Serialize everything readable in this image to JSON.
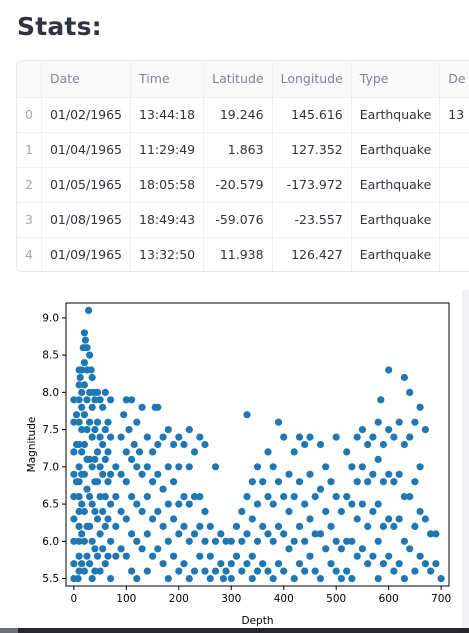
{
  "page": {
    "heading": "Stats:"
  },
  "table": {
    "columns": [
      "",
      "Date",
      "Time",
      "Latitude",
      "Longitude",
      "Type",
      "De"
    ],
    "rows": [
      {
        "index": "0",
        "date": "01/02/1965",
        "time": "13:44:18",
        "latitude": "19.246",
        "longitude": "145.616",
        "type": "Earthquake",
        "de": "13"
      },
      {
        "index": "1",
        "date": "01/04/1965",
        "time": "11:29:49",
        "latitude": "1.863",
        "longitude": "127.352",
        "type": "Earthquake",
        "de": ""
      },
      {
        "index": "2",
        "date": "01/05/1965",
        "time": "18:05:58",
        "latitude": "-20.579",
        "longitude": "-173.972",
        "type": "Earthquake",
        "de": ""
      },
      {
        "index": "3",
        "date": "01/08/1965",
        "time": "18:49:43",
        "latitude": "-59.076",
        "longitude": "-23.557",
        "type": "Earthquake",
        "de": ""
      },
      {
        "index": "4",
        "date": "01/09/1965",
        "time": "13:32:50",
        "latitude": "11.938",
        "longitude": "126.427",
        "type": "Earthquake",
        "de": ""
      }
    ]
  },
  "chart_data": {
    "type": "scatter",
    "xlabel": "Depth",
    "ylabel": "Magnitude",
    "xlim": [
      -15,
      715
    ],
    "ylim": [
      5.4,
      9.2
    ],
    "xticks": [
      "0",
      "100",
      "200",
      "300",
      "400",
      "500",
      "600",
      "700"
    ],
    "yticks": [
      "5.5",
      "6.0",
      "6.5",
      "7.0",
      "7.5",
      "8.0",
      "8.5",
      "9.0"
    ],
    "color": "#1f77b4",
    "grid": false,
    "points": [
      [
        0,
        5.5
      ],
      [
        0,
        5.7
      ],
      [
        0,
        6.0
      ],
      [
        0,
        6.3
      ],
      [
        0,
        6.6
      ],
      [
        0,
        6.9
      ],
      [
        0,
        7.2
      ],
      [
        0,
        7.6
      ],
      [
        0,
        7.9
      ],
      [
        5,
        6.8
      ],
      [
        5,
        7.3
      ],
      [
        5,
        7.7
      ],
      [
        8,
        5.5
      ],
      [
        10,
        5.6
      ],
      [
        10,
        5.8
      ],
      [
        10,
        6.0
      ],
      [
        10,
        6.2
      ],
      [
        10,
        6.4
      ],
      [
        10,
        6.6
      ],
      [
        10,
        6.8
      ],
      [
        10,
        7.0
      ],
      [
        10,
        7.3
      ],
      [
        10,
        7.6
      ],
      [
        10,
        7.9
      ],
      [
        10,
        8.1
      ],
      [
        10,
        8.3
      ],
      [
        12,
        8.2
      ],
      [
        15,
        8.3
      ],
      [
        15,
        8.0
      ],
      [
        15,
        7.8
      ],
      [
        15,
        7.5
      ],
      [
        15,
        7.2
      ],
      [
        15,
        6.9
      ],
      [
        15,
        6.5
      ],
      [
        15,
        6.1
      ],
      [
        15,
        5.7
      ],
      [
        18,
        8.6
      ],
      [
        20,
        8.8
      ],
      [
        20,
        8.4
      ],
      [
        20,
        8.1
      ],
      [
        20,
        7.7
      ],
      [
        20,
        7.3
      ],
      [
        20,
        6.9
      ],
      [
        20,
        6.4
      ],
      [
        20,
        6.0
      ],
      [
        20,
        5.6
      ],
      [
        22,
        8.7
      ],
      [
        25,
        8.6
      ],
      [
        25,
        8.3
      ],
      [
        25,
        7.9
      ],
      [
        25,
        7.5
      ],
      [
        25,
        7.1
      ],
      [
        25,
        6.7
      ],
      [
        25,
        6.2
      ],
      [
        25,
        5.8
      ],
      [
        28,
        9.1
      ],
      [
        30,
        8.5
      ],
      [
        30,
        8.0
      ],
      [
        30,
        7.6
      ],
      [
        30,
        7.1
      ],
      [
        30,
        6.6
      ],
      [
        30,
        6.2
      ],
      [
        30,
        5.7
      ],
      [
        33,
        8.3
      ],
      [
        35,
        8.2
      ],
      [
        35,
        7.8
      ],
      [
        35,
        7.4
      ],
      [
        35,
        7.0
      ],
      [
        35,
        6.5
      ],
      [
        35,
        6.0
      ],
      [
        35,
        5.5
      ],
      [
        38,
        8.0
      ],
      [
        40,
        7.9
      ],
      [
        40,
        7.5
      ],
      [
        40,
        7.1
      ],
      [
        40,
        6.8
      ],
      [
        40,
        6.4
      ],
      [
        40,
        5.9
      ],
      [
        40,
        5.6
      ],
      [
        45,
        8.0
      ],
      [
        45,
        7.6
      ],
      [
        45,
        7.2
      ],
      [
        45,
        6.8
      ],
      [
        45,
        6.3
      ],
      [
        45,
        5.8
      ],
      [
        50,
        7.9
      ],
      [
        50,
        7.4
      ],
      [
        50,
        7.0
      ],
      [
        50,
        6.6
      ],
      [
        50,
        6.1
      ],
      [
        50,
        5.6
      ],
      [
        55,
        7.8
      ],
      [
        55,
        7.3
      ],
      [
        55,
        6.9
      ],
      [
        55,
        6.4
      ],
      [
        55,
        5.9
      ],
      [
        60,
        8.0
      ],
      [
        60,
        7.5
      ],
      [
        60,
        7.1
      ],
      [
        60,
        6.6
      ],
      [
        60,
        6.2
      ],
      [
        60,
        5.7
      ],
      [
        65,
        7.6
      ],
      [
        65,
        7.2
      ],
      [
        65,
        6.8
      ],
      [
        65,
        6.3
      ],
      [
        65,
        5.8
      ],
      [
        70,
        7.9
      ],
      [
        70,
        7.4
      ],
      [
        70,
        6.9
      ],
      [
        70,
        6.5
      ],
      [
        70,
        6.0
      ],
      [
        70,
        5.5
      ],
      [
        80,
        7.0
      ],
      [
        80,
        6.6
      ],
      [
        80,
        6.2
      ],
      [
        80,
        5.8
      ],
      [
        90,
        7.4
      ],
      [
        90,
        6.9
      ],
      [
        90,
        6.4
      ],
      [
        90,
        5.9
      ],
      [
        95,
        7.7
      ],
      [
        100,
        7.9
      ],
      [
        100,
        7.2
      ],
      [
        100,
        6.8
      ],
      [
        100,
        6.3
      ],
      [
        100,
        5.8
      ],
      [
        105,
        7.5
      ],
      [
        110,
        7.9
      ],
      [
        110,
        7.1
      ],
      [
        110,
        6.6
      ],
      [
        110,
        6.1
      ],
      [
        110,
        5.6
      ],
      [
        115,
        7.3
      ],
      [
        120,
        7.6
      ],
      [
        120,
        7.0
      ],
      [
        120,
        6.5
      ],
      [
        120,
        6.0
      ],
      [
        120,
        5.5
      ],
      [
        125,
        7.2
      ],
      [
        130,
        7.8
      ],
      [
        130,
        6.9
      ],
      [
        130,
        6.4
      ],
      [
        130,
        5.9
      ],
      [
        140,
        7.4
      ],
      [
        140,
        7.0
      ],
      [
        140,
        6.6
      ],
      [
        140,
        6.1
      ],
      [
        140,
        5.6
      ],
      [
        150,
        7.2
      ],
      [
        150,
        6.8
      ],
      [
        150,
        6.3
      ],
      [
        150,
        5.8
      ],
      [
        155,
        7.8
      ],
      [
        160,
        7.8
      ],
      [
        160,
        7.3
      ],
      [
        160,
        6.9
      ],
      [
        160,
        6.4
      ],
      [
        160,
        5.9
      ],
      [
        170,
        7.4
      ],
      [
        170,
        6.7
      ],
      [
        170,
        6.2
      ],
      [
        170,
        5.7
      ],
      [
        180,
        7.5
      ],
      [
        180,
        7.0
      ],
      [
        180,
        6.5
      ],
      [
        180,
        6.0
      ],
      [
        180,
        5.5
      ],
      [
        190,
        7.3
      ],
      [
        190,
        6.8
      ],
      [
        190,
        6.3
      ],
      [
        190,
        5.8
      ],
      [
        200,
        7.4
      ],
      [
        200,
        7.0
      ],
      [
        200,
        6.5
      ],
      [
        200,
        6.1
      ],
      [
        200,
        5.6
      ],
      [
        210,
        7.3
      ],
      [
        210,
        6.6
      ],
      [
        210,
        6.2
      ],
      [
        210,
        5.7
      ],
      [
        220,
        7.5
      ],
      [
        220,
        7.0
      ],
      [
        220,
        6.5
      ],
      [
        220,
        6.0
      ],
      [
        220,
        5.5
      ],
      [
        230,
        7.2
      ],
      [
        230,
        6.6
      ],
      [
        230,
        6.1
      ],
      [
        230,
        5.6
      ],
      [
        240,
        7.4
      ],
      [
        240,
        6.6
      ],
      [
        240,
        6.2
      ],
      [
        240,
        5.8
      ],
      [
        250,
        7.3
      ],
      [
        250,
        6.4
      ],
      [
        250,
        6.0
      ],
      [
        250,
        5.6
      ],
      [
        260,
        6.2
      ],
      [
        260,
        5.8
      ],
      [
        260,
        5.5
      ],
      [
        270,
        7.0
      ],
      [
        270,
        6.0
      ],
      [
        270,
        5.6
      ],
      [
        280,
        6.1
      ],
      [
        280,
        5.7
      ],
      [
        285,
        5.5
      ],
      [
        290,
        6.0
      ],
      [
        290,
        5.6
      ],
      [
        300,
        6.0
      ],
      [
        300,
        5.7
      ],
      [
        300,
        5.5
      ],
      [
        310,
        6.2
      ],
      [
        310,
        5.8
      ],
      [
        320,
        6.4
      ],
      [
        320,
        6.0
      ],
      [
        320,
        5.6
      ],
      [
        330,
        7.7
      ],
      [
        330,
        6.6
      ],
      [
        330,
        6.1
      ],
      [
        330,
        5.7
      ],
      [
        340,
        6.8
      ],
      [
        340,
        6.3
      ],
      [
        340,
        5.8
      ],
      [
        340,
        5.5
      ],
      [
        350,
        7.0
      ],
      [
        350,
        6.5
      ],
      [
        350,
        6.0
      ],
      [
        350,
        5.6
      ],
      [
        360,
        6.8
      ],
      [
        360,
        6.2
      ],
      [
        360,
        5.7
      ],
      [
        370,
        7.2
      ],
      [
        370,
        6.6
      ],
      [
        370,
        6.1
      ],
      [
        370,
        5.6
      ],
      [
        380,
        7.0
      ],
      [
        380,
        6.5
      ],
      [
        380,
        6.0
      ],
      [
        380,
        5.5
      ],
      [
        390,
        7.6
      ],
      [
        390,
        6.8
      ],
      [
        390,
        6.2
      ],
      [
        390,
        5.7
      ],
      [
        400,
        7.4
      ],
      [
        400,
        6.6
      ],
      [
        400,
        6.1
      ],
      [
        400,
        5.6
      ],
      [
        410,
        6.9
      ],
      [
        410,
        6.4
      ],
      [
        410,
        5.9
      ],
      [
        420,
        7.2
      ],
      [
        420,
        6.6
      ],
      [
        420,
        6.0
      ],
      [
        420,
        5.5
      ],
      [
        430,
        7.4
      ],
      [
        430,
        6.8
      ],
      [
        430,
        6.2
      ],
      [
        430,
        5.7
      ],
      [
        440,
        7.3
      ],
      [
        440,
        6.5
      ],
      [
        440,
        6.0
      ],
      [
        440,
        5.6
      ],
      [
        450,
        7.4
      ],
      [
        450,
        6.9
      ],
      [
        450,
        6.3
      ],
      [
        450,
        5.8
      ],
      [
        460,
        6.6
      ],
      [
        460,
        6.1
      ],
      [
        460,
        5.6
      ],
      [
        470,
        7.3
      ],
      [
        470,
        6.7
      ],
      [
        470,
        6.1
      ],
      [
        470,
        5.5
      ],
      [
        480,
        7.0
      ],
      [
        480,
        6.4
      ],
      [
        480,
        5.9
      ],
      [
        490,
        6.8
      ],
      [
        490,
        6.2
      ],
      [
        490,
        5.7
      ],
      [
        500,
        7.4
      ],
      [
        500,
        6.6
      ],
      [
        500,
        6.0
      ],
      [
        500,
        5.6
      ],
      [
        510,
        6.4
      ],
      [
        510,
        5.9
      ],
      [
        510,
        5.5
      ],
      [
        520,
        7.2
      ],
      [
        520,
        6.6
      ],
      [
        520,
        6.0
      ],
      [
        520,
        5.6
      ],
      [
        530,
        7.0
      ],
      [
        530,
        6.5
      ],
      [
        530,
        6.0
      ],
      [
        530,
        5.5
      ],
      [
        540,
        7.4
      ],
      [
        540,
        6.8
      ],
      [
        540,
        6.3
      ],
      [
        540,
        5.8
      ],
      [
        550,
        7.5
      ],
      [
        550,
        7.0
      ],
      [
        550,
        6.5
      ],
      [
        550,
        5.9
      ],
      [
        560,
        7.3
      ],
      [
        560,
        6.8
      ],
      [
        560,
        6.2
      ],
      [
        560,
        5.7
      ],
      [
        570,
        7.4
      ],
      [
        570,
        6.9
      ],
      [
        570,
        6.4
      ],
      [
        570,
        5.8
      ],
      [
        580,
        7.6
      ],
      [
        580,
        7.1
      ],
      [
        580,
        6.5
      ],
      [
        580,
        6.0
      ],
      [
        580,
        5.5
      ],
      [
        585,
        7.9
      ],
      [
        590,
        7.3
      ],
      [
        590,
        6.8
      ],
      [
        590,
        6.2
      ],
      [
        590,
        5.7
      ],
      [
        600,
        8.3
      ],
      [
        600,
        7.5
      ],
      [
        600,
        6.9
      ],
      [
        600,
        6.3
      ],
      [
        600,
        5.8
      ],
      [
        610,
        7.4
      ],
      [
        610,
        6.8
      ],
      [
        610,
        6.2
      ],
      [
        610,
        5.6
      ],
      [
        620,
        7.6
      ],
      [
        620,
        6.9
      ],
      [
        620,
        6.3
      ],
      [
        620,
        5.7
      ],
      [
        630,
        8.2
      ],
      [
        630,
        7.3
      ],
      [
        630,
        6.6
      ],
      [
        630,
        6.0
      ],
      [
        630,
        5.5
      ],
      [
        640,
        8.0
      ],
      [
        640,
        7.4
      ],
      [
        640,
        6.6
      ],
      [
        640,
        5.9
      ],
      [
        650,
        7.6
      ],
      [
        650,
        6.8
      ],
      [
        650,
        6.2
      ],
      [
        650,
        5.6
      ],
      [
        660,
        7.8
      ],
      [
        660,
        7.0
      ],
      [
        660,
        6.4
      ],
      [
        660,
        5.8
      ],
      [
        670,
        7.5
      ],
      [
        670,
        6.3
      ],
      [
        670,
        5.7
      ],
      [
        680,
        6.1
      ],
      [
        680,
        5.6
      ],
      [
        690,
        6.1
      ],
      [
        690,
        5.7
      ],
      [
        700,
        5.5
      ]
    ]
  }
}
